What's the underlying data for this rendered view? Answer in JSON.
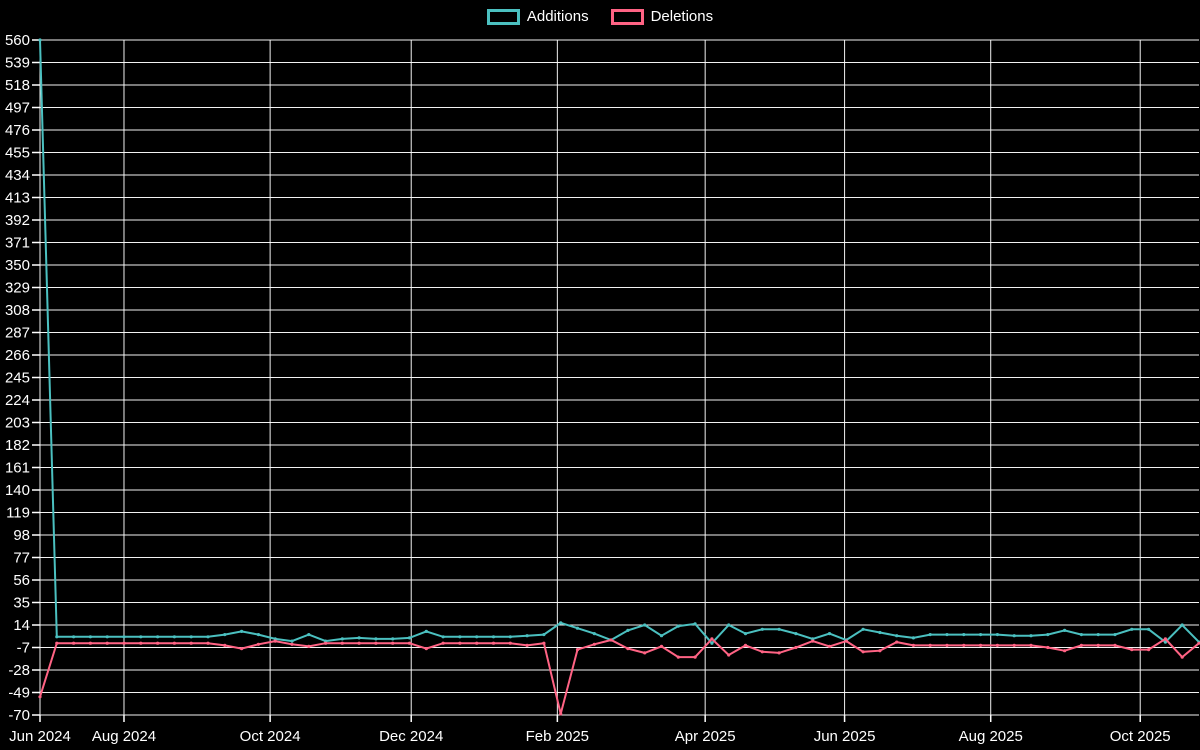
{
  "legend": {
    "items": [
      {
        "label": "Additions",
        "color": "#4BC0C0"
      },
      {
        "label": "Deletions",
        "color": "#FF6384"
      }
    ]
  },
  "colors": {
    "background": "#000000",
    "grid": "#FFFFFF",
    "text": "#FFFFFF",
    "additions": "#4BC0C0",
    "deletions": "#FF6384"
  },
  "chart_data": {
    "type": "line",
    "title": "",
    "xlabel": "",
    "ylabel": "",
    "x_unit": "week_index",
    "x_range_visible": "Jun 2024 to Oct 2025",
    "point_count": 70,
    "ylim": [
      -70,
      560
    ],
    "grid": true,
    "legend_position": "top",
    "y_ticks": [
      560,
      539,
      518,
      497,
      476,
      455,
      434,
      413,
      392,
      371,
      350,
      329,
      308,
      287,
      266,
      245,
      224,
      203,
      182,
      161,
      140,
      119,
      98,
      77,
      56,
      35,
      14,
      -7,
      -28,
      -49,
      -70
    ],
    "x_ticks": [
      {
        "label": "Jun 2024",
        "week": 0
      },
      {
        "label": "Aug 2024",
        "week": 5.0
      },
      {
        "label": "Oct 2024",
        "week": 13.7
      },
      {
        "label": "Dec 2024",
        "week": 22.1
      },
      {
        "label": "Feb 2025",
        "week": 30.8
      },
      {
        "label": "Apr 2025",
        "week": 39.6
      },
      {
        "label": "Jun 2025",
        "week": 47.9
      },
      {
        "label": "Aug 2025",
        "week": 56.6
      },
      {
        "label": "Oct 2025",
        "week": 65.5
      }
    ],
    "series": [
      {
        "name": "Additions",
        "color": "#4BC0C0",
        "values": [
          560,
          3,
          3,
          3,
          3,
          3,
          3,
          3,
          3,
          3,
          3,
          5,
          8,
          5,
          1,
          -1,
          5,
          -1,
          1,
          2,
          1,
          1,
          2,
          8,
          3,
          3,
          3,
          3,
          3,
          4,
          5,
          16,
          11,
          6,
          0,
          9,
          14,
          4,
          13,
          15,
          -3,
          14,
          6,
          10,
          10,
          6,
          1,
          6,
          0,
          10,
          7,
          4,
          2,
          5,
          5,
          5,
          5,
          5,
          4,
          4,
          5,
          9,
          5,
          5,
          5,
          10,
          10,
          -2,
          14,
          -2
        ]
      },
      {
        "name": "Deletions",
        "color": "#FF6384",
        "values": [
          -53,
          -3,
          -3,
          -3,
          -3,
          -3,
          -3,
          -3,
          -3,
          -3,
          -3,
          -5,
          -8,
          -4,
          -1,
          -4,
          -6,
          -3,
          -3,
          -3,
          -3,
          -3,
          -3,
          -8,
          -3,
          -3,
          -3,
          -3,
          -3,
          -5,
          -3,
          -69,
          -9,
          -4,
          0,
          -8,
          -12,
          -6,
          -16,
          -16,
          1,
          -14,
          -5,
          -11,
          -12,
          -7,
          -1,
          -6,
          -1,
          -11,
          -10,
          -2,
          -5,
          -5,
          -5,
          -5,
          -5,
          -5,
          -5,
          -5,
          -7,
          -10,
          -5,
          -5,
          -5,
          -9,
          -9,
          1,
          -16,
          -3
        ]
      }
    ]
  }
}
